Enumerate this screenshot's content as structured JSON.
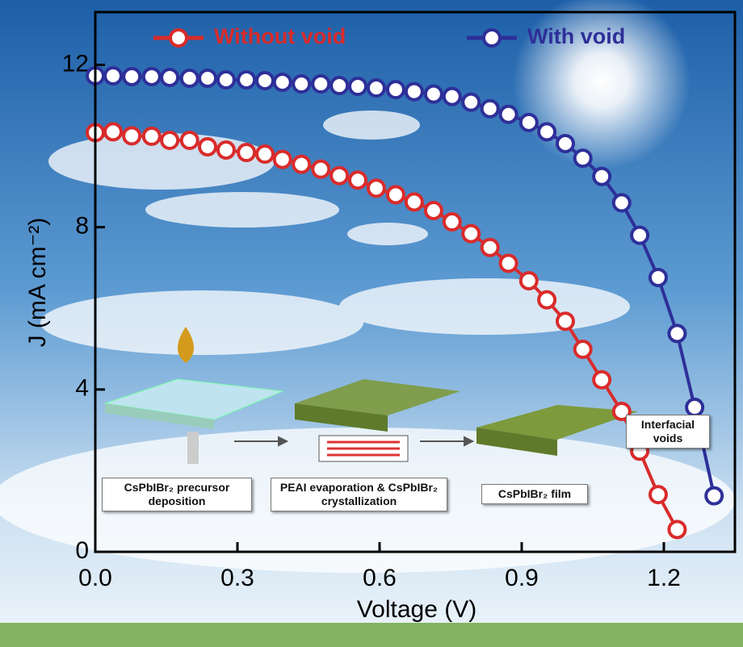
{
  "chart_data": {
    "type": "line",
    "x_label": "Voltage (V)",
    "y_label": "J (mA cm⁻²)",
    "xlim": [
      0,
      1.35
    ],
    "ylim": [
      0,
      13.3
    ],
    "xticks": [
      {
        "value": 0,
        "label": "0.0"
      },
      0.3,
      0.6,
      0.9,
      1.2
    ],
    "yticks": [
      0,
      4,
      8,
      12
    ],
    "legend": "top",
    "series": [
      {
        "name": "Without void",
        "color": "#d92b2b",
        "x": [
          0,
          0.0375,
          0.077,
          0.119,
          0.157,
          0.199,
          0.237,
          0.276,
          0.319,
          0.358,
          0.395,
          0.435,
          0.476,
          0.515,
          0.554,
          0.593,
          0.634,
          0.673,
          0.714,
          0.753,
          0.793,
          0.833,
          0.872,
          0.915,
          0.953,
          0.992,
          1.029,
          1.069,
          1.111,
          1.149,
          1.188,
          1.228
        ],
        "values": [
          10.33,
          10.35,
          10.25,
          10.24,
          10.14,
          10.14,
          9.98,
          9.9,
          9.84,
          9.8,
          9.67,
          9.55,
          9.43,
          9.27,
          9.16,
          8.96,
          8.8,
          8.62,
          8.41,
          8.13,
          7.84,
          7.5,
          7.11,
          6.68,
          6.21,
          5.68,
          4.99,
          4.24,
          3.46,
          2.48,
          1.41,
          0.55
        ]
      },
      {
        "name": "With void",
        "color": "#2e2f99",
        "x": [
          0,
          0.0375,
          0.077,
          0.119,
          0.157,
          0.199,
          0.237,
          0.276,
          0.319,
          0.358,
          0.395,
          0.435,
          0.476,
          0.515,
          0.554,
          0.593,
          0.634,
          0.673,
          0.714,
          0.753,
          0.793,
          0.833,
          0.872,
          0.915,
          0.953,
          0.992,
          1.029,
          1.069,
          1.111,
          1.149,
          1.188,
          1.228,
          1.265,
          1.306
        ],
        "values": [
          11.73,
          11.73,
          11.71,
          11.71,
          11.69,
          11.67,
          11.67,
          11.63,
          11.63,
          11.61,
          11.57,
          11.53,
          11.53,
          11.49,
          11.47,
          11.43,
          11.39,
          11.34,
          11.28,
          11.22,
          11.08,
          10.92,
          10.78,
          10.58,
          10.35,
          10.06,
          9.7,
          9.25,
          8.6,
          7.8,
          6.76,
          5.38,
          3.56,
          1.38
        ]
      }
    ],
    "annotations": [
      "CsPbIBr₂ precursor deposition",
      "PEAI evaporation & CsPbIBr₂ crystallization",
      "CsPbIBr₂ film",
      "Interfacial voids"
    ]
  }
}
